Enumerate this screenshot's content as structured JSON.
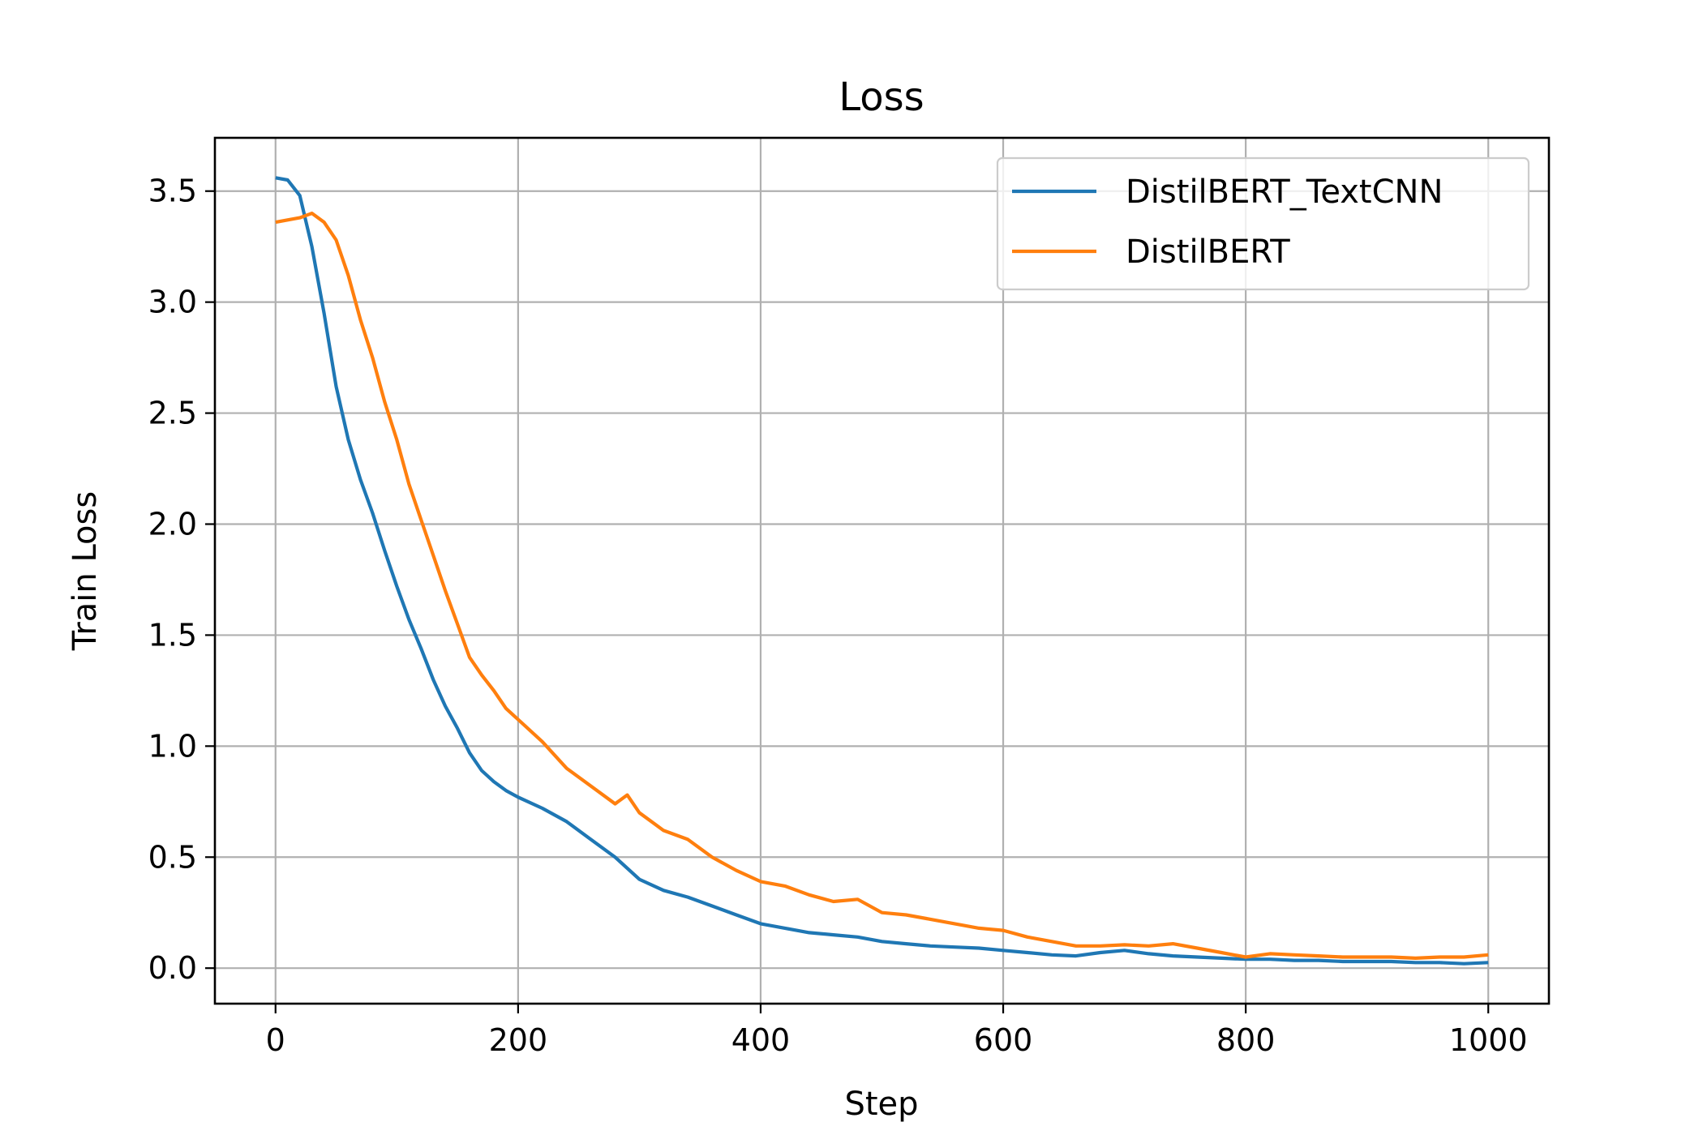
{
  "chart_data": {
    "type": "line",
    "title": "Loss",
    "xlabel": "Step",
    "ylabel": "Train Loss",
    "xlim": [
      -50,
      1050
    ],
    "ylim": [
      -0.16,
      3.74
    ],
    "xticks": [
      0,
      200,
      400,
      600,
      800,
      1000
    ],
    "xtick_labels": [
      "0",
      "200",
      "400",
      "600",
      "800",
      "1000"
    ],
    "yticks": [
      0.0,
      0.5,
      1.0,
      1.5,
      2.0,
      2.5,
      3.0,
      3.5
    ],
    "ytick_labels": [
      "0.0",
      "0.5",
      "1.0",
      "1.5",
      "2.0",
      "2.5",
      "3.0",
      "3.5"
    ],
    "grid": true,
    "legend_position": "upper right",
    "series": [
      {
        "name": "DistilBERT_TextCNN",
        "color": "#1f77b4",
        "x": [
          0,
          10,
          20,
          30,
          40,
          50,
          60,
          70,
          80,
          90,
          100,
          110,
          120,
          130,
          140,
          150,
          160,
          170,
          180,
          190,
          200,
          220,
          240,
          260,
          280,
          300,
          320,
          340,
          360,
          380,
          400,
          420,
          440,
          460,
          480,
          500,
          520,
          540,
          560,
          580,
          600,
          620,
          640,
          660,
          680,
          700,
          720,
          740,
          760,
          780,
          800,
          820,
          840,
          860,
          880,
          900,
          920,
          940,
          960,
          980,
          1000
        ],
        "y": [
          3.56,
          3.55,
          3.48,
          3.25,
          2.95,
          2.62,
          2.38,
          2.2,
          2.05,
          1.88,
          1.72,
          1.57,
          1.44,
          1.3,
          1.18,
          1.08,
          0.97,
          0.89,
          0.84,
          0.8,
          0.77,
          0.72,
          0.66,
          0.58,
          0.5,
          0.4,
          0.35,
          0.32,
          0.28,
          0.24,
          0.2,
          0.18,
          0.16,
          0.15,
          0.14,
          0.12,
          0.11,
          0.1,
          0.095,
          0.09,
          0.08,
          0.07,
          0.06,
          0.055,
          0.07,
          0.08,
          0.065,
          0.055,
          0.05,
          0.045,
          0.04,
          0.04,
          0.035,
          0.035,
          0.03,
          0.03,
          0.03,
          0.025,
          0.025,
          0.02,
          0.025
        ]
      },
      {
        "name": "DistilBERT",
        "color": "#ff7f0e",
        "x": [
          0,
          10,
          20,
          30,
          40,
          50,
          60,
          70,
          80,
          90,
          100,
          110,
          120,
          130,
          140,
          150,
          160,
          170,
          180,
          190,
          200,
          220,
          240,
          260,
          280,
          290,
          300,
          320,
          340,
          360,
          380,
          400,
          420,
          440,
          460,
          480,
          500,
          520,
          540,
          560,
          580,
          600,
          620,
          640,
          660,
          680,
          700,
          720,
          740,
          760,
          780,
          800,
          820,
          840,
          860,
          880,
          900,
          920,
          940,
          960,
          980,
          1000
        ],
        "y": [
          3.36,
          3.37,
          3.38,
          3.4,
          3.36,
          3.28,
          3.12,
          2.92,
          2.75,
          2.55,
          2.38,
          2.18,
          2.02,
          1.86,
          1.7,
          1.55,
          1.4,
          1.32,
          1.25,
          1.17,
          1.12,
          1.02,
          0.9,
          0.82,
          0.74,
          0.78,
          0.7,
          0.62,
          0.58,
          0.5,
          0.44,
          0.39,
          0.37,
          0.33,
          0.3,
          0.31,
          0.25,
          0.24,
          0.22,
          0.2,
          0.18,
          0.17,
          0.14,
          0.12,
          0.1,
          0.1,
          0.105,
          0.1,
          0.11,
          0.09,
          0.07,
          0.05,
          0.065,
          0.06,
          0.055,
          0.05,
          0.05,
          0.05,
          0.045,
          0.05,
          0.05,
          0.06
        ]
      }
    ]
  }
}
